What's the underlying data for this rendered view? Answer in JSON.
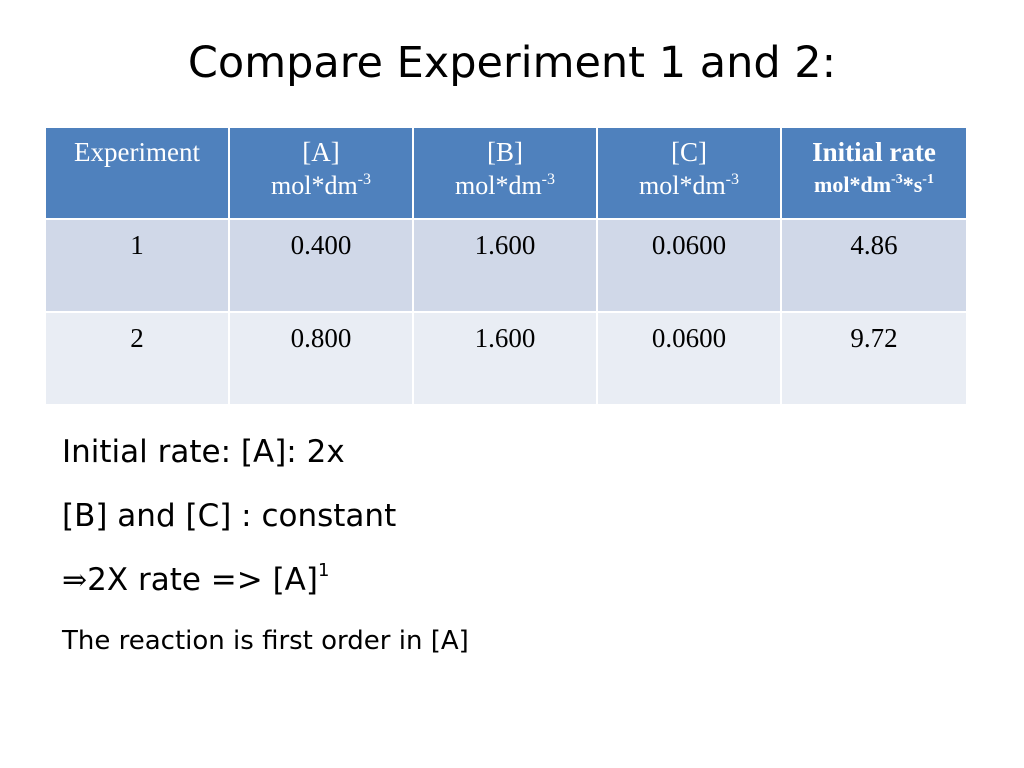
{
  "title": "Compare Experiment 1 and 2:",
  "table": {
    "headers": [
      {
        "name": "Experiment",
        "unit_base": "",
        "unit_exp": "",
        "unit_tail": "",
        "unit_tail_exp": ""
      },
      {
        "name": "[A]",
        "unit_base": "mol*dm",
        "unit_exp": "-3",
        "unit_tail": "",
        "unit_tail_exp": ""
      },
      {
        "name": "[B]",
        "unit_base": "mol*dm",
        "unit_exp": "-3",
        "unit_tail": "",
        "unit_tail_exp": ""
      },
      {
        "name": "[C]",
        "unit_base": "mol*dm",
        "unit_exp": "-3",
        "unit_tail": "",
        "unit_tail_exp": ""
      },
      {
        "name": "Initial rate",
        "unit_base": "mol*dm",
        "unit_exp": "-3",
        "unit_tail": "*s",
        "unit_tail_exp": "-1"
      }
    ],
    "rows": [
      [
        "1",
        "0.400",
        "1.600",
        "0.0600",
        "4.86"
      ],
      [
        "2",
        "0.800",
        "1.600",
        "0.0600",
        "9.72"
      ]
    ]
  },
  "colors": {
    "header_bg": "#4f81bd",
    "row_odd_bg": "#d0d8e8",
    "row_even_bg": "#e9edf4"
  },
  "notes": {
    "line1": "Initial rate: [A]: 2x",
    "line2": "[B] and [C] : constant",
    "line3_arrow": "⇒",
    "line3_text": "2X rate => [A]",
    "line3_sup": "1",
    "line4": "The reaction is first order in [A]"
  }
}
